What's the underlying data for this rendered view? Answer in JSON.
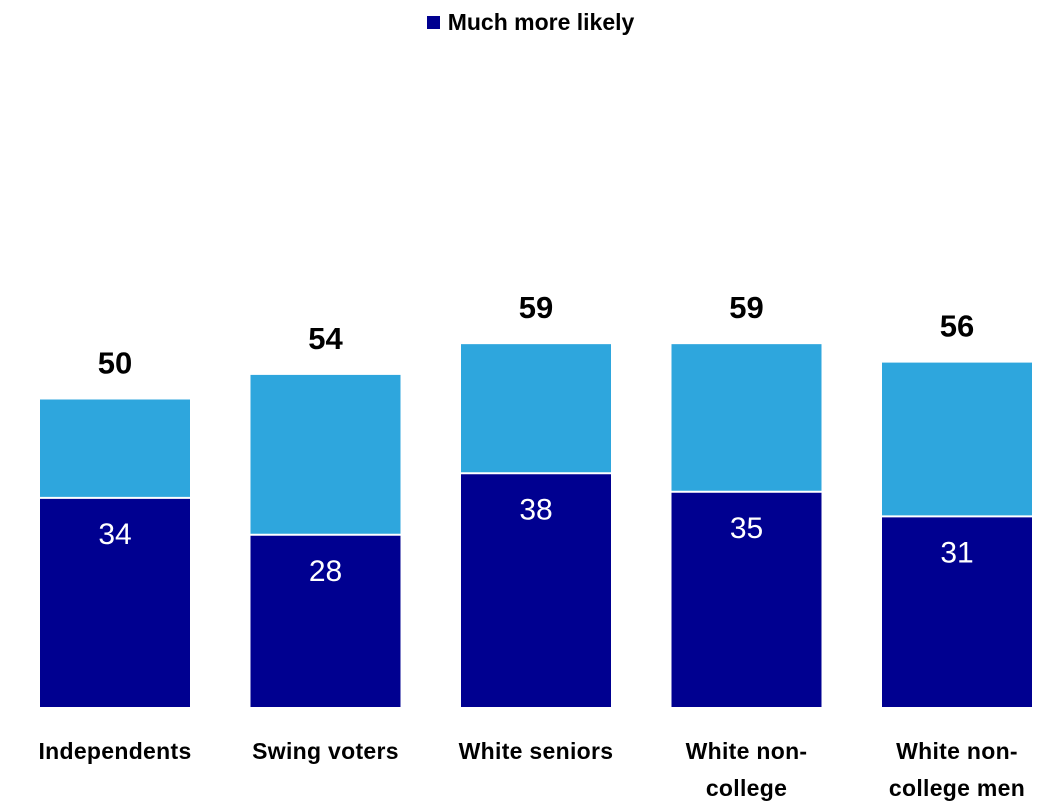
{
  "legend": {
    "label": "Much more likely"
  },
  "colors": {
    "much_more": "#000090",
    "total": "#2ea6dd",
    "divider": "#ffffff"
  },
  "chart_data": {
    "type": "bar",
    "stacked": true,
    "categories": [
      "Independents",
      "Swing voters",
      "White seniors",
      "White non-college",
      "White non-college men"
    ],
    "category_lines": [
      [
        "Independents"
      ],
      [
        "Swing voters"
      ],
      [
        "White seniors"
      ],
      [
        "White non-",
        "college"
      ],
      [
        "White non-",
        "college men"
      ]
    ],
    "series": [
      {
        "name": "Much more likely",
        "values": [
          34,
          28,
          38,
          35,
          31
        ]
      },
      {
        "values": [
          16,
          26,
          21,
          24,
          25
        ]
      }
    ],
    "totals": [
      50,
      54,
      59,
      59,
      56
    ],
    "ylim": [
      0,
      80
    ],
    "title": "",
    "xlabel": "",
    "ylabel": "",
    "grid": false,
    "legend_position": "top-center"
  }
}
